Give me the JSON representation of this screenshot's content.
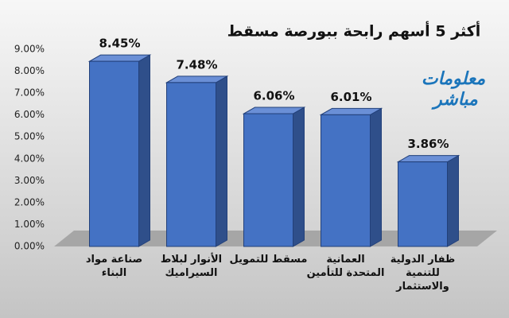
{
  "chart_data": {
    "type": "bar3d",
    "title": "أكثر 5 أسهم رابحة ببورصة مسقط",
    "categories": [
      "صناعة مواد البناء",
      "الأنوار لبلاط السيراميك",
      "مسقط للتمويل",
      "العمانية المتحدة للتأمين",
      "ظفار الدولية للتنمية والاستثمار"
    ],
    "values": [
      8.45,
      7.48,
      6.06,
      6.01,
      3.86
    ],
    "value_labels": [
      "8.45%",
      "7.48%",
      "6.06%",
      "6.01%",
      "3.86%"
    ],
    "color": "#4472c4",
    "ylim": [
      0,
      9
    ],
    "yticks": [
      {
        "value": 0,
        "label": "0.00%"
      },
      {
        "value": 1,
        "label": "1.00%"
      },
      {
        "value": 2,
        "label": "2.00%"
      },
      {
        "value": 3,
        "label": "3.00%"
      },
      {
        "value": 4,
        "label": "4.00%"
      },
      {
        "value": 5,
        "label": "5.00%"
      },
      {
        "value": 6,
        "label": "6.00%"
      },
      {
        "value": 7,
        "label": "7.00%"
      },
      {
        "value": 8,
        "label": "8.00%"
      },
      {
        "value": 9,
        "label": "9.00%"
      }
    ],
    "grid": false
  },
  "logo": [
    "معلومات",
    "مباشر"
  ]
}
